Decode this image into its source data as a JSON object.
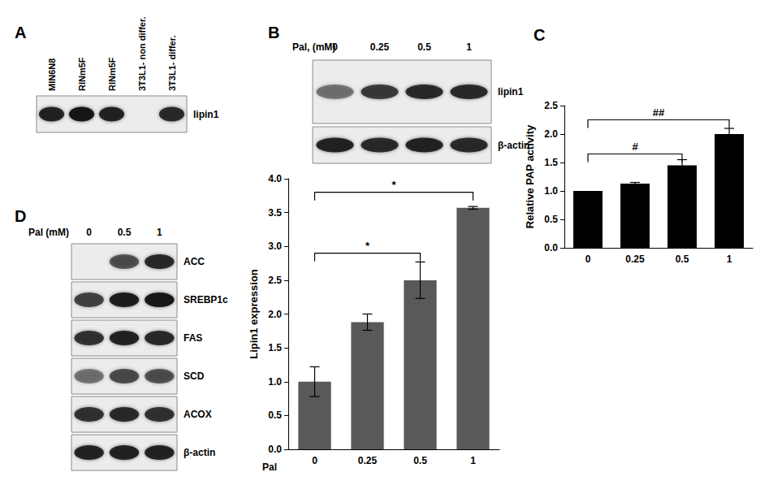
{
  "blot_panels": [
    {
      "letter": "A",
      "lanes": [
        "MIN6N8",
        "RINm5F",
        "RINm5F",
        "3T3L1- non differ.",
        "3T3L1- differ."
      ],
      "rows": [
        {
          "label": "lipin1",
          "band_intensity": [
            0.9,
            1.0,
            0.9,
            0.0,
            0.85
          ]
        }
      ]
    },
    {
      "letter": "B",
      "treatment": "Pal, (mM)",
      "lanes": [
        "0",
        "0.25",
        "0.5",
        "1"
      ],
      "rows": [
        {
          "label": "lipin1",
          "band_intensity": [
            0.45,
            0.75,
            0.85,
            0.85
          ]
        },
        {
          "label": "β-actin",
          "band_intensity": [
            0.9,
            0.85,
            0.9,
            0.85
          ]
        }
      ]
    },
    {
      "letter": "D",
      "treatment": "Pal (mM)",
      "lanes": [
        "0",
        "0.5",
        "1"
      ],
      "rows": [
        {
          "label": "ACC",
          "band_intensity": [
            0.0,
            0.6,
            0.85
          ]
        },
        {
          "label": "SREBP1c",
          "band_intensity": [
            0.7,
            0.95,
            1.0
          ]
        },
        {
          "label": "FAS",
          "band_intensity": [
            0.8,
            0.9,
            0.85
          ]
        },
        {
          "label": "SCD",
          "band_intensity": [
            0.45,
            0.65,
            0.6
          ]
        },
        {
          "label": "ACOX",
          "band_intensity": [
            0.8,
            0.85,
            0.8
          ]
        },
        {
          "label": "β-actin",
          "band_intensity": [
            0.9,
            0.9,
            0.9
          ]
        }
      ]
    }
  ],
  "chart_data": [
    {
      "type": "bar",
      "xlabel": "Pal",
      "ylabel": "Lipin1 expression",
      "categories": [
        "0",
        "0.25",
        "0.5",
        "1"
      ],
      "values": [
        1.0,
        1.88,
        2.5,
        3.57
      ],
      "errors": [
        0.22,
        0.12,
        0.27,
        0.02
      ],
      "color": "#595959",
      "ylim": [
        0,
        4
      ],
      "yticks": [
        {
          "value": 0,
          "label": "0.0"
        },
        {
          "value": 0.5,
          "label": "0.5"
        },
        {
          "value": 1,
          "label": "1.0"
        },
        {
          "value": 1.5,
          "label": "1.5"
        },
        {
          "value": 2,
          "label": "2.0"
        },
        {
          "value": 2.5,
          "label": "2.5"
        },
        {
          "value": 3,
          "label": "3.0"
        },
        {
          "value": 3.5,
          "label": "3.5"
        },
        {
          "value": 4,
          "label": "4.0"
        }
      ],
      "grid": false,
      "annotations": [
        {
          "text": "*",
          "from": "0",
          "to": "0.5",
          "y": 2.9
        },
        {
          "text": "*",
          "from": "0",
          "to": "1",
          "y": 3.8
        }
      ]
    },
    {
      "type": "bar",
      "title": "C",
      "ylabel": "Relative PAP activity",
      "categories": [
        "0",
        "0.25",
        "0.5",
        "1"
      ],
      "values": [
        1.0,
        1.13,
        1.45,
        2.0
      ],
      "errors": [
        0,
        0.02,
        0.1,
        0.1
      ],
      "color": "#000000",
      "ylim": [
        0,
        2.5
      ],
      "yticks": [
        {
          "value": 0,
          "label": "0.0"
        },
        {
          "value": 0.5,
          "label": "0.5"
        },
        {
          "value": 1,
          "label": "1.0"
        },
        {
          "value": 1.5,
          "label": "1.5"
        },
        {
          "value": 2,
          "label": "2.0"
        },
        {
          "value": 2.5,
          "label": "2.5"
        }
      ],
      "grid": false,
      "annotations": [
        {
          "text": "#",
          "from": "0",
          "to": "0.5",
          "y": 1.65
        },
        {
          "text": "##",
          "from": "0",
          "to": "1",
          "y": 2.25
        }
      ]
    }
  ]
}
